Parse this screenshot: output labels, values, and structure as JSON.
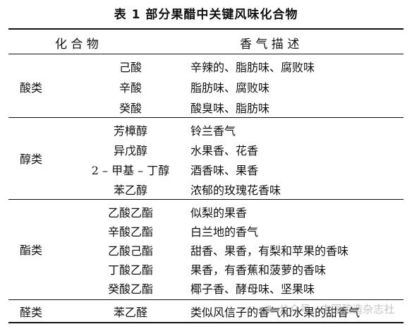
{
  "title": "表 1   部分果醋中关键风味化合物",
  "header": {
    "compound": "化    合    物",
    "aroma": "香    气    描    述"
  },
  "groups": [
    {
      "category": "酸类",
      "rows": [
        {
          "compound": "己酸",
          "aroma": "辛辣的、脂肪味、腐败味"
        },
        {
          "compound": "辛酸",
          "aroma": "脂肪味、腐败味"
        },
        {
          "compound": "癸酸",
          "aroma": "酸臭味、脂肪味"
        }
      ]
    },
    {
      "category": "醇类",
      "rows": [
        {
          "compound": "芳樟醇",
          "aroma": "铃兰香气"
        },
        {
          "compound": "异戊醇",
          "aroma": "水果香、花香"
        },
        {
          "compound": "2 – 甲基 – 丁醇",
          "aroma": "酒香味、果香"
        },
        {
          "compound": "苯乙醇",
          "aroma": "浓郁的玫瑰花香味"
        }
      ]
    },
    {
      "category": "酯类",
      "rows": [
        {
          "compound": "乙酸乙酯",
          "aroma": "似梨的果香"
        },
        {
          "compound": "辛酸乙酯",
          "aroma": "白兰地的香气"
        },
        {
          "compound": "乙酸己酯",
          "aroma": "甜香、果香，有梨和苹果的香味"
        },
        {
          "compound": "丁酸乙酯",
          "aroma": "果香，有香蕉和菠萝的香味"
        },
        {
          "compound": "癸酸乙酯",
          "aroma": "椰子香、酵母味、坚果味"
        }
      ]
    },
    {
      "category": "醛类",
      "rows": [
        {
          "compound": "苯乙醛",
          "aroma": "类似风信子的香气和水果的甜香气"
        }
      ]
    }
  ],
  "watermark": "公众号 · 中国酿造杂志社"
}
